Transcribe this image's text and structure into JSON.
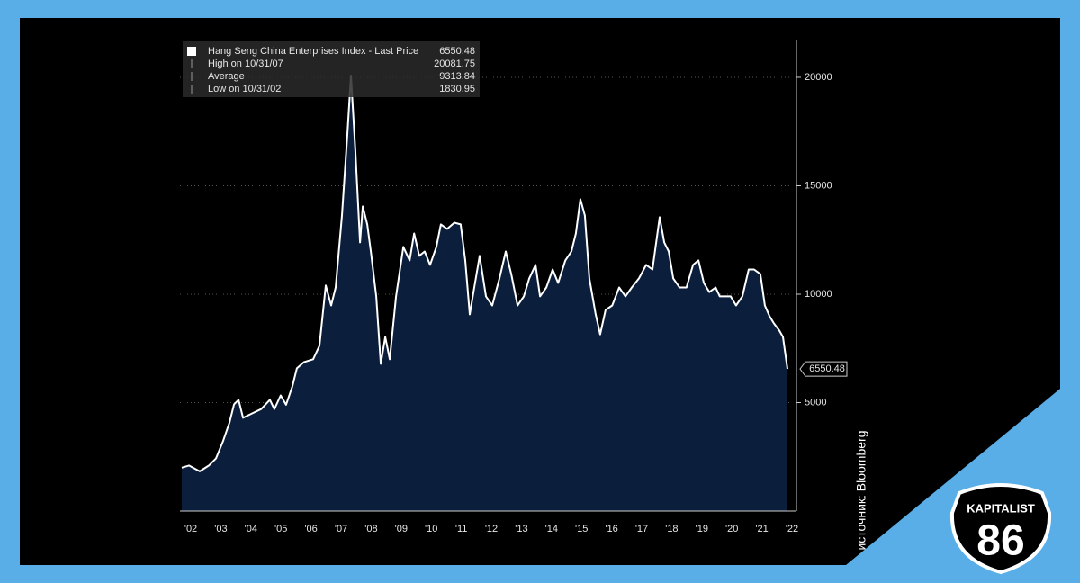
{
  "chart_data": {
    "type": "area",
    "x": [
      2002.2,
      2002.44,
      2002.8,
      2003.1,
      2003.34,
      2003.58,
      2003.79,
      2003.94,
      2004.09,
      2004.24,
      2004.54,
      2004.84,
      2005.13,
      2005.28,
      2005.49,
      2005.67,
      2005.88,
      2006.03,
      2006.27,
      2006.57,
      2006.78,
      2006.99,
      2007.17,
      2007.32,
      2007.53,
      2007.71,
      2007.83,
      2007.98,
      2008.13,
      2008.22,
      2008.37,
      2008.49,
      2008.67,
      2008.82,
      2008.97,
      2009.12,
      2009.33,
      2009.57,
      2009.78,
      2009.93,
      2010.1,
      2010.28,
      2010.46,
      2010.67,
      2010.82,
      2011.03,
      2011.27,
      2011.48,
      2011.63,
      2011.78,
      2011.93,
      2012.11,
      2012.32,
      2012.53,
      2012.77,
      2012.98,
      2013.16,
      2013.37,
      2013.58,
      2013.76,
      2013.97,
      2014.12,
      2014.33,
      2014.54,
      2014.72,
      2014.96,
      2015.16,
      2015.31,
      2015.46,
      2015.61,
      2015.76,
      2015.97,
      2016.12,
      2016.3,
      2016.52,
      2016.75,
      2016.96,
      2017.17,
      2017.41,
      2017.65,
      2017.86,
      2018.1,
      2018.25,
      2018.4,
      2018.55,
      2018.76,
      2018.99,
      2019.21,
      2019.39,
      2019.57,
      2019.75,
      2019.96,
      2020.1,
      2020.25,
      2020.46,
      2020.64,
      2020.85,
      2021.06,
      2021.24,
      2021.45,
      2021.6,
      2021.75,
      2021.9,
      2022.08,
      2022.2,
      2022.35
    ],
    "series": [
      {
        "name": "Hang Seng China Enterprises Index - Last Price",
        "color": "#ffffff",
        "fill": "#0b1f3d",
        "values": [
          2000,
          2100,
          1830.95,
          2100,
          2430,
          3250,
          4090,
          4920,
          5130,
          4300,
          4500,
          4700,
          5130,
          4700,
          5330,
          4900,
          5750,
          6580,
          6870,
          7000,
          7620,
          10400,
          9480,
          10310,
          13630,
          17370,
          20081.75,
          16540,
          12390,
          14050,
          13220,
          11970,
          9900,
          6790,
          8030,
          7000,
          9900,
          12180,
          11560,
          12800,
          11770,
          11970,
          11350,
          12180,
          13220,
          13010,
          13300,
          13220,
          11560,
          9070,
          10310,
          11770,
          9900,
          9480,
          10730,
          11970,
          10930,
          9480,
          9900,
          10730,
          11350,
          9900,
          10310,
          11140,
          10520,
          11560,
          11970,
          12800,
          14380,
          13630,
          10730,
          9070,
          8150,
          9270,
          9480,
          10310,
          9900,
          10310,
          10730,
          11350,
          11140,
          13550,
          12390,
          11970,
          10730,
          10310,
          10310,
          11350,
          11560,
          10520,
          10100,
          10310,
          9900,
          9900,
          9900,
          9480,
          9900,
          11140,
          11140,
          10930,
          9480,
          8990,
          8650,
          8320,
          8030,
          6550.48
        ]
      }
    ],
    "xlim": [
      2002.14,
      2022.5
    ],
    "xticks": [
      {
        "value": 2002.5,
        "label": "'02"
      },
      {
        "value": 2003.5,
        "label": "'03"
      },
      {
        "value": 2004.5,
        "label": "'04"
      },
      {
        "value": 2005.5,
        "label": "'05"
      },
      {
        "value": 2006.5,
        "label": "'06"
      },
      {
        "value": 2007.5,
        "label": "'07"
      },
      {
        "value": 2008.5,
        "label": "'08"
      },
      {
        "value": 2009.5,
        "label": "'09"
      },
      {
        "value": 2010.5,
        "label": "'10"
      },
      {
        "value": 2011.5,
        "label": "'11"
      },
      {
        "value": 2012.5,
        "label": "'12"
      },
      {
        "value": 2013.5,
        "label": "'13"
      },
      {
        "value": 2014.5,
        "label": "'14"
      },
      {
        "value": 2015.5,
        "label": "'15"
      },
      {
        "value": 2016.5,
        "label": "'16"
      },
      {
        "value": 2017.5,
        "label": "'17"
      },
      {
        "value": 2018.5,
        "label": "'18"
      },
      {
        "value": 2019.5,
        "label": "'19"
      },
      {
        "value": 2020.5,
        "label": "'20"
      },
      {
        "value": 2021.5,
        "label": "'21"
      },
      {
        "value": 2022.5,
        "label": "'22"
      }
    ],
    "ylim": [
      0,
      21700
    ],
    "yticks": [
      5000,
      10000,
      15000,
      20000
    ],
    "grid": true,
    "stats": [
      {
        "label": "Hang Seng China Enterprises Index - Last Price",
        "value": 6550.48
      },
      {
        "label": "High on 10/31/07",
        "value": 20081.75
      },
      {
        "label": "Average",
        "value": 9313.84
      },
      {
        "label": "Low on 10/31/02",
        "value": 1830.95
      }
    ]
  },
  "source": "источник: Bloomberg",
  "logo": {
    "name": "KAPITALIST",
    "number": "86"
  }
}
